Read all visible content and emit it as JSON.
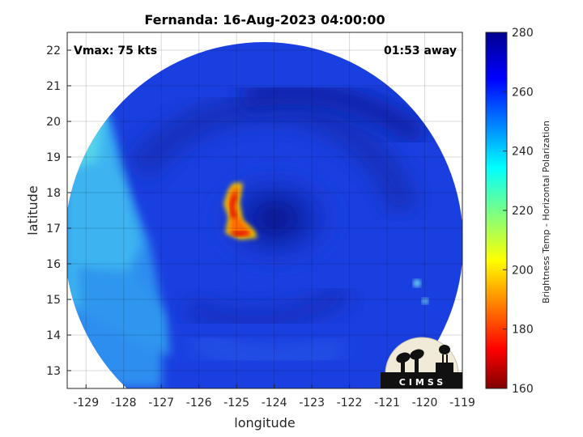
{
  "title": "Fernanda: 16-Aug-2023 04:00:00",
  "vmax_label": "Vmax: 75 kts",
  "time_away": "01:53 away",
  "xlabel": "longitude",
  "ylabel": "latitude",
  "x_ticks": [
    "-129",
    "-128",
    "-127",
    "-126",
    "-125",
    "-124",
    "-123",
    "-122",
    "-121",
    "-120",
    "-119"
  ],
  "y_ticks": [
    "22",
    "21",
    "20",
    "19",
    "18",
    "17",
    "16",
    "15",
    "14",
    "13"
  ],
  "colorbar": {
    "label": "Brightness Temp - Horizontal Polarization",
    "ticks": [
      "280",
      "260",
      "240",
      "220",
      "200",
      "180",
      "160"
    ],
    "range": [
      160,
      280
    ],
    "colormap": "jet"
  },
  "logo_text": "CIMSS",
  "map": {
    "xlim": [
      -129.5,
      -119
    ],
    "ylim": [
      12.5,
      22.5
    ],
    "grid": true,
    "storm_center_lon": -124.2,
    "storm_center_lat": 17.2,
    "colors": {
      "cold_ring": "#e8b800",
      "eyewall_hot": "#d40000",
      "background_field": "#1a3fe0",
      "outer_field": "#35b8f0"
    }
  }
}
